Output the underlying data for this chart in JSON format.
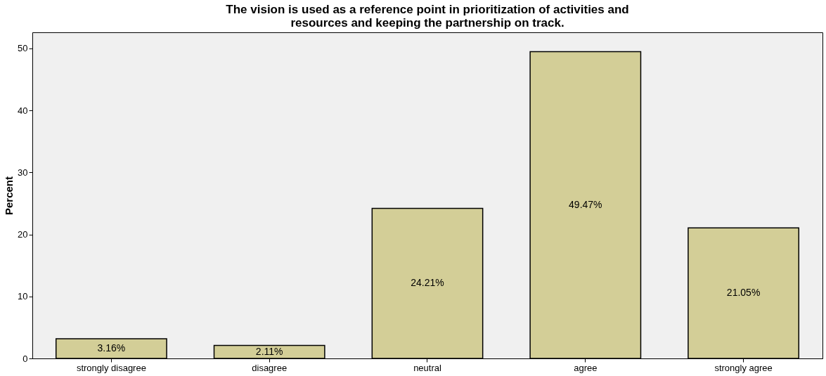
{
  "chart_data": {
    "type": "bar",
    "title": "The vision is used as a reference point in prioritization of activities and\nresources and keeping the partnership on track.",
    "ylabel": "Percent",
    "categories": [
      "strongly disagree",
      "disagree",
      "neutral",
      "agree",
      "strongly agree"
    ],
    "values": [
      3.16,
      2.11,
      24.21,
      49.47,
      21.05
    ],
    "value_labels": [
      "3.16%",
      "2.11%",
      "24.21%",
      "49.47%",
      "21.05%"
    ],
    "color": "#d3ce97",
    "ylim": [
      0,
      52.6
    ],
    "yticks": [
      0,
      10,
      20,
      30,
      40,
      50
    ],
    "grid": false
  }
}
